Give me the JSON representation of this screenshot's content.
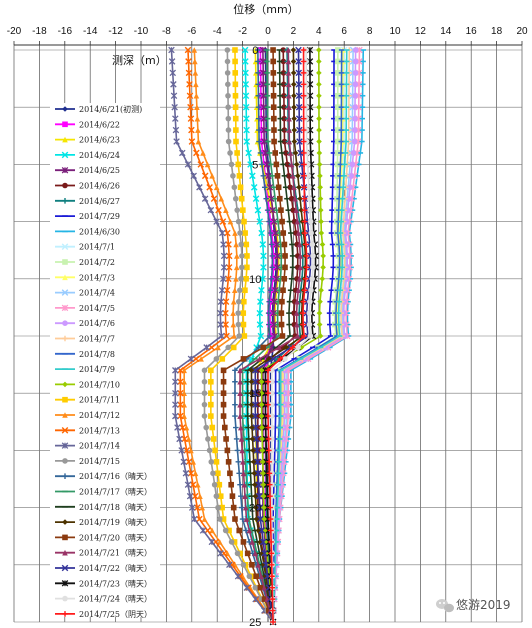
{
  "chart_data": {
    "type": "line",
    "title": "",
    "xlabel": "位移（mm）",
    "ylabel": "测深（m）",
    "xlim": [
      -20,
      20
    ],
    "ylim": [
      25,
      0
    ],
    "x_tick_labels": [
      "-20",
      "-18",
      "-16",
      "-14",
      "-12",
      "-10",
      "-8",
      "-6",
      "-4",
      "-2",
      "0",
      "2",
      "4",
      "6",
      "8",
      "10",
      "12",
      "14",
      "16",
      "18",
      "20"
    ],
    "y_tick_labels": [
      "0",
      "5",
      "10",
      "15",
      "20",
      "25"
    ],
    "depths": [
      0,
      0.5,
      1,
      1.5,
      2,
      2.5,
      3,
      3.5,
      4,
      4.5,
      5,
      5.5,
      6,
      6.5,
      7,
      7.5,
      8,
      8.5,
      9,
      9.5,
      10,
      10.5,
      11,
      11.5,
      12,
      12.5,
      13,
      13.5,
      14,
      14.5,
      15,
      15.5,
      16,
      16.5,
      17,
      17.5,
      18,
      18.5,
      19,
      19.5,
      20,
      20.5,
      21,
      21.5,
      22,
      22.5,
      23,
      23.5,
      24,
      24.5,
      25
    ],
    "series": [
      {
        "name": "2014/6/21(初测)",
        "color": "#1f2f8f",
        "marker": "diamond",
        "at_top": -0.2,
        "at_knee": 0.5,
        "at_shelf": 0.2,
        "at_mid": 0.3
      },
      {
        "name": "2014/6/22",
        "color": "#ff00ff",
        "marker": "square",
        "at_top": -0.6,
        "at_knee": 0.3,
        "at_shelf": -0.2,
        "at_mid": -0.2
      },
      {
        "name": "2014/6/23",
        "color": "#f5e600",
        "marker": "triangle",
        "at_top": -1.0,
        "at_knee": 0.7,
        "at_shelf": -1.0,
        "at_mid": -0.8
      },
      {
        "name": "2014/6/24",
        "color": "#00e5e5",
        "marker": "x",
        "at_top": -1.8,
        "at_knee": -0.5,
        "at_shelf": -1.7,
        "at_mid": -1.6
      },
      {
        "name": "2014/6/25",
        "color": "#7a1f7a",
        "marker": "star",
        "at_top": -0.4,
        "at_knee": 0.6,
        "at_shelf": -0.4,
        "at_mid": -0.4
      },
      {
        "name": "2014/6/26",
        "color": "#7a1a1a",
        "marker": "circle",
        "at_top": 1.2,
        "at_knee": 2.2,
        "at_shelf": -0.8,
        "at_mid": -0.8
      },
      {
        "name": "2014/6/27",
        "color": "#0f7f7f",
        "marker": "plus",
        "at_top": 1.5,
        "at_knee": 2.6,
        "at_shelf": -0.2,
        "at_mid": -0.1
      },
      {
        "name": "2014/7/29",
        "color": "#1a1ad6",
        "marker": "dash",
        "at_top": 5.2,
        "at_knee": 5.0,
        "at_shelf": 0.6,
        "at_mid": 0.4
      },
      {
        "name": "2014/6/30",
        "color": "#25b5e5",
        "marker": "dash",
        "at_top": 7.5,
        "at_knee": 6.4,
        "at_shelf": 1.8,
        "at_mid": 0.9
      },
      {
        "name": "2014/7/1",
        "color": "#c0f0ff",
        "marker": "x",
        "at_top": 6.0,
        "at_knee": 5.8,
        "at_shelf": 1.4,
        "at_mid": 0.8
      },
      {
        "name": "2014/7/2",
        "color": "#c8f2b0",
        "marker": "square",
        "at_top": 5.5,
        "at_knee": 5.4,
        "at_shelf": 1.0,
        "at_mid": 0.6
      },
      {
        "name": "2014/7/3",
        "color": "#ffff66",
        "marker": "triangle",
        "at_top": 5.9,
        "at_knee": 5.6,
        "at_shelf": 1.2,
        "at_mid": 0.7
      },
      {
        "name": "2014/7/4",
        "color": "#99ccff",
        "marker": "x",
        "at_top": 6.7,
        "at_knee": 6.0,
        "at_shelf": 1.5,
        "at_mid": 0.8
      },
      {
        "name": "2014/7/5",
        "color": "#ff99cc",
        "marker": "star",
        "at_top": 7.2,
        "at_knee": 6.3,
        "at_shelf": 1.6,
        "at_mid": 0.9
      },
      {
        "name": "2014/7/6",
        "color": "#cc99ff",
        "marker": "circle",
        "at_top": 6.9,
        "at_knee": 6.1,
        "at_shelf": 1.3,
        "at_mid": 0.8
      },
      {
        "name": "2014/7/7",
        "color": "#ffcc99",
        "marker": "plus",
        "at_top": 6.4,
        "at_knee": 5.9,
        "at_shelf": 1.1,
        "at_mid": 0.7
      },
      {
        "name": "2014/7/8",
        "color": "#3366cc",
        "marker": "dash",
        "at_top": 5.8,
        "at_knee": 5.5,
        "at_shelf": 0.9,
        "at_mid": 0.6
      },
      {
        "name": "2014/7/9",
        "color": "#33cccc",
        "marker": "dash",
        "at_top": 6.2,
        "at_knee": 5.7,
        "at_shelf": 1.0,
        "at_mid": 0.7
      },
      {
        "name": "2014/7/10",
        "color": "#99cc00",
        "marker": "diamond",
        "at_top": 4.0,
        "at_knee": 4.2,
        "at_shelf": -0.5,
        "at_mid": -0.3
      },
      {
        "name": "2014/7/11",
        "color": "#ffcc00",
        "marker": "square",
        "at_top": -2.6,
        "at_knee": -1.8,
        "at_shelf": -4.5,
        "at_mid": -3.5
      },
      {
        "name": "2014/7/12",
        "color": "#ff8c1a",
        "marker": "triangle",
        "at_top": -5.8,
        "at_knee": -2.6,
        "at_shelf": -6.6,
        "at_mid": -5.0
      },
      {
        "name": "2014/7/13",
        "color": "#ff6600",
        "marker": "x",
        "at_top": -6.3,
        "at_knee": -3.2,
        "at_shelf": -6.9,
        "at_mid": -5.4
      },
      {
        "name": "2014/7/14",
        "color": "#666699",
        "marker": "star",
        "at_top": -7.6,
        "at_knee": -3.6,
        "at_shelf": -7.3,
        "at_mid": -5.8
      },
      {
        "name": "2014/7/15",
        "color": "#999999",
        "marker": "circle",
        "at_top": -3.2,
        "at_knee": -2.2,
        "at_shelf": -5.0,
        "at_mid": -3.8
      },
      {
        "name": "2014/7/16（晴天）",
        "color": "#336699",
        "marker": "plus",
        "at_top": -0.8,
        "at_knee": 0.2,
        "at_shelf": -2.6,
        "at_mid": -2.0
      },
      {
        "name": "2014/7/17（晴天）",
        "color": "#339966",
        "marker": "dash",
        "at_top": -0.1,
        "at_knee": 0.9,
        "at_shelf": -2.0,
        "at_mid": -1.5
      },
      {
        "name": "2014/7/18（晴天）",
        "color": "#1f3f1f",
        "marker": "dash",
        "at_top": 0.9,
        "at_knee": 1.8,
        "at_shelf": -1.6,
        "at_mid": -1.2
      },
      {
        "name": "2014/7/19（晴天）",
        "color": "#4d3300",
        "marker": "diamond",
        "at_top": 2.0,
        "at_knee": 2.8,
        "at_shelf": -1.3,
        "at_mid": -0.9
      },
      {
        "name": "2014/7/20（晴天）",
        "color": "#8b3a0f",
        "marker": "square",
        "at_top": 0.4,
        "at_knee": 1.2,
        "at_shelf": -3.5,
        "at_mid": -2.6
      },
      {
        "name": "2014/7/21（晴天）",
        "color": "#993366",
        "marker": "triangle",
        "at_top": 1.6,
        "at_knee": 2.4,
        "at_shelf": -2.2,
        "at_mid": -1.7
      },
      {
        "name": "2014/7/22（晴天）",
        "color": "#333399",
        "marker": "x",
        "at_top": 2.4,
        "at_knee": 3.2,
        "at_shelf": -1.0,
        "at_mid": -0.6
      },
      {
        "name": "2014/7/23（晴天）",
        "color": "#111111",
        "marker": "star",
        "at_top": 3.3,
        "at_knee": 3.6,
        "at_shelf": -0.2,
        "at_mid": 0.0
      },
      {
        "name": "2014/7/24（晴天）",
        "color": "#e0e0e0",
        "marker": "circle",
        "at_top": 3.0,
        "at_knee": 3.4,
        "at_shelf": 0.3,
        "at_mid": 0.3
      },
      {
        "name": "2014/7/25（阴天）",
        "color": "#ff1a1a",
        "marker": "plus",
        "at_top": 2.8,
        "at_knee": 2.9,
        "at_shelf": 0.0,
        "at_mid": 0.2
      }
    ]
  },
  "watermark": {
    "text": "悠游2019",
    "icon": "wechat-icon"
  }
}
